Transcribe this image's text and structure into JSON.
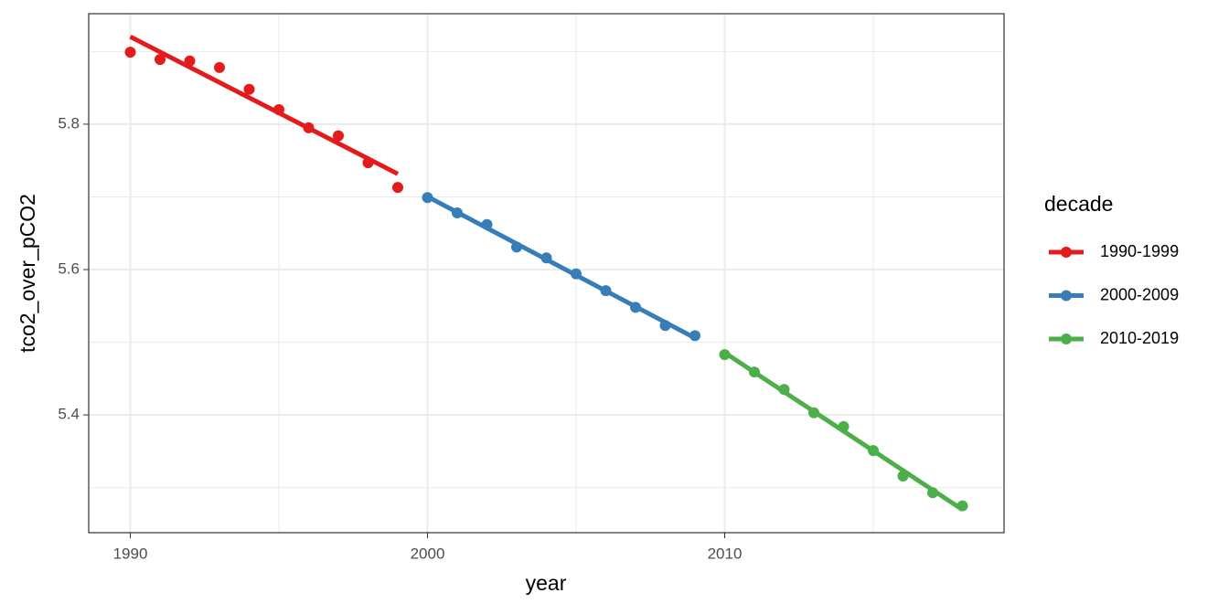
{
  "chart_data": {
    "type": "scatter",
    "x_label": "year",
    "y_label": "tco2_over_pCO2",
    "legend_title": "decade",
    "legend_position": "right",
    "grid": true,
    "trend_lines": true,
    "xlim": [
      1988.6,
      2019.4
    ],
    "xticks": [
      1990,
      2000,
      2010
    ],
    "x_minor_grid": [
      1995,
      2005,
      2015
    ],
    "ylim": [
      5.238,
      5.952
    ],
    "yticks": [
      5.4,
      5.6,
      5.8
    ],
    "y_minor_grid": [
      5.3,
      5.5,
      5.7,
      5.9
    ],
    "series": [
      {
        "name": "1990-1999",
        "color": "#e41a1c",
        "x": [
          1990,
          1991,
          1992,
          1993,
          1994,
          1995,
          1996,
          1997,
          1998,
          1999
        ],
        "values": [
          5.899,
          5.889,
          5.887,
          5.878,
          5.848,
          5.82,
          5.795,
          5.784,
          5.747,
          5.713
        ]
      },
      {
        "name": "2000-2009",
        "color": "#377eb8",
        "x": [
          2000,
          2001,
          2002,
          2003,
          2004,
          2005,
          2006,
          2007,
          2008,
          2009
        ],
        "values": [
          5.699,
          5.678,
          5.662,
          5.631,
          5.616,
          5.594,
          5.571,
          5.548,
          5.523,
          5.509
        ]
      },
      {
        "name": "2010-2019",
        "color": "#4daf4a",
        "x": [
          2010,
          2011,
          2012,
          2013,
          2014,
          2015,
          2016,
          2017,
          2018
        ],
        "values": [
          5.483,
          5.459,
          5.435,
          5.403,
          5.384,
          5.351,
          5.316,
          5.293,
          5.275
        ]
      }
    ]
  }
}
